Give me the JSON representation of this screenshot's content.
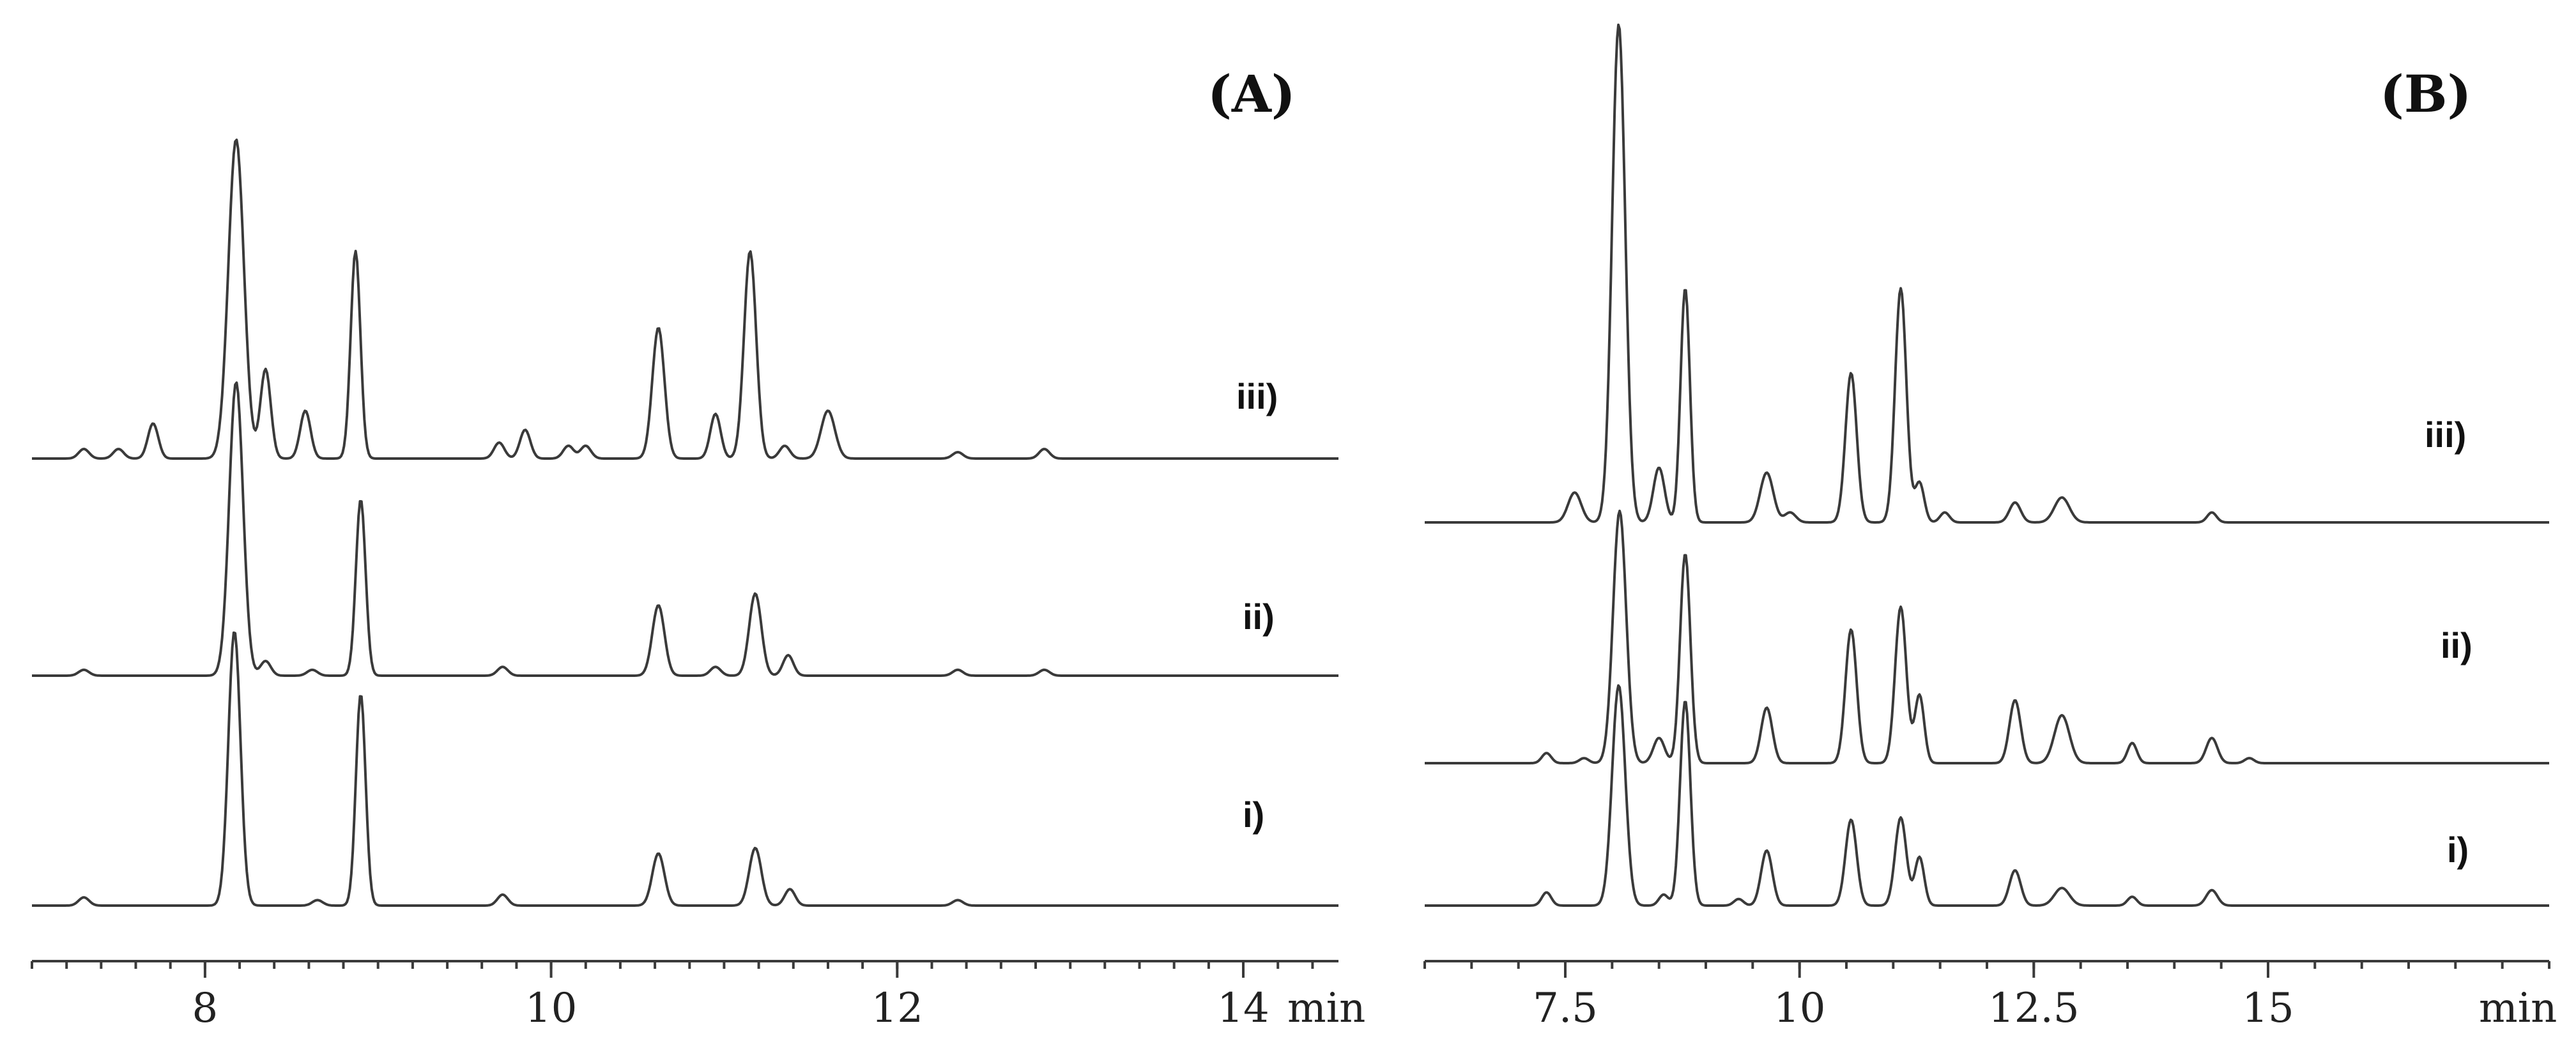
{
  "chart_data": [
    {
      "type": "line",
      "panel_label": "(A)",
      "xunit": "min",
      "xlim": [
        7.0,
        14.55
      ],
      "xticks": [
        8,
        10,
        12,
        14
      ],
      "xtick_labels": [
        "8",
        "10",
        "12",
        "14"
      ],
      "minor_tick_step": 0.2,
      "grid": false,
      "series": [
        {
          "name": "iii)",
          "peaks": [
            [
              7.3,
              0.03,
              0.03
            ],
            [
              7.5,
              0.03,
              0.03
            ],
            [
              7.7,
              0.11,
              0.03
            ],
            [
              8.18,
              1.0,
              0.045
            ],
            [
              8.35,
              0.28,
              0.03
            ],
            [
              8.58,
              0.15,
              0.03
            ],
            [
              8.87,
              0.65,
              0.028
            ],
            [
              9.7,
              0.05,
              0.03
            ],
            [
              9.85,
              0.09,
              0.03
            ],
            [
              10.1,
              0.04,
              0.03
            ],
            [
              10.2,
              0.04,
              0.03
            ],
            [
              10.62,
              0.41,
              0.035
            ],
            [
              10.95,
              0.14,
              0.03
            ],
            [
              11.15,
              0.65,
              0.035
            ],
            [
              11.35,
              0.04,
              0.03
            ],
            [
              11.6,
              0.15,
              0.04
            ],
            [
              12.35,
              0.02,
              0.03
            ],
            [
              12.85,
              0.03,
              0.03
            ]
          ]
        },
        {
          "name": "ii)",
          "peaks": [
            [
              7.3,
              0.02,
              0.03
            ],
            [
              8.18,
              1.0,
              0.04
            ],
            [
              8.35,
              0.05,
              0.03
            ],
            [
              8.62,
              0.02,
              0.03
            ],
            [
              8.9,
              0.6,
              0.028
            ],
            [
              9.72,
              0.03,
              0.03
            ],
            [
              10.62,
              0.24,
              0.035
            ],
            [
              10.95,
              0.03,
              0.03
            ],
            [
              11.18,
              0.28,
              0.035
            ],
            [
              11.37,
              0.07,
              0.03
            ],
            [
              12.35,
              0.02,
              0.03
            ],
            [
              12.85,
              0.02,
              0.03
            ]
          ]
        },
        {
          "name": "i)",
          "peaks": [
            [
              7.3,
              0.03,
              0.03
            ],
            [
              8.17,
              1.0,
              0.035
            ],
            [
              8.65,
              0.02,
              0.03
            ],
            [
              8.9,
              0.77,
              0.028
            ],
            [
              9.72,
              0.04,
              0.03
            ],
            [
              10.62,
              0.19,
              0.035
            ],
            [
              11.18,
              0.21,
              0.035
            ],
            [
              11.38,
              0.06,
              0.03
            ],
            [
              12.35,
              0.02,
              0.03
            ]
          ]
        }
      ]
    },
    {
      "type": "line",
      "panel_label": "(B)",
      "xunit": "min",
      "xlim": [
        6.0,
        18.0
      ],
      "xticks": [
        7.5,
        10,
        12.5,
        15
      ],
      "xtick_labels": [
        "7.5",
        "10",
        "12.5",
        "15"
      ],
      "minor_tick_step": 0.5,
      "grid": false,
      "series": [
        {
          "name": "iii)",
          "peaks": [
            [
              7.6,
              0.06,
              0.07
            ],
            [
              8.07,
              1.0,
              0.07
            ],
            [
              8.5,
              0.11,
              0.06
            ],
            [
              8.78,
              0.47,
              0.05
            ],
            [
              9.65,
              0.1,
              0.07
            ],
            [
              9.9,
              0.02,
              0.06
            ],
            [
              10.55,
              0.3,
              0.06
            ],
            [
              11.08,
              0.47,
              0.06
            ],
            [
              11.28,
              0.08,
              0.05
            ],
            [
              11.55,
              0.02,
              0.05
            ],
            [
              12.3,
              0.04,
              0.06
            ],
            [
              12.8,
              0.05,
              0.08
            ],
            [
              14.4,
              0.02,
              0.05
            ]
          ]
        },
        {
          "name": "ii)",
          "peaks": [
            [
              7.3,
              0.04,
              0.05
            ],
            [
              7.7,
              0.02,
              0.05
            ],
            [
              8.08,
              1.0,
              0.07
            ],
            [
              8.5,
              0.1,
              0.06
            ],
            [
              8.78,
              0.83,
              0.055
            ],
            [
              9.65,
              0.22,
              0.06
            ],
            [
              10.55,
              0.53,
              0.06
            ],
            [
              11.08,
              0.62,
              0.06
            ],
            [
              11.28,
              0.27,
              0.05
            ],
            [
              12.3,
              0.25,
              0.06
            ],
            [
              12.8,
              0.19,
              0.08
            ],
            [
              13.55,
              0.08,
              0.05
            ],
            [
              14.4,
              0.1,
              0.06
            ],
            [
              14.8,
              0.02,
              0.05
            ]
          ]
        },
        {
          "name": "i)",
          "peaks": [
            [
              7.3,
              0.06,
              0.05
            ],
            [
              8.07,
              1.0,
              0.07
            ],
            [
              8.55,
              0.05,
              0.05
            ],
            [
              8.78,
              0.93,
              0.055
            ],
            [
              9.35,
              0.03,
              0.05
            ],
            [
              9.65,
              0.25,
              0.06
            ],
            [
              10.55,
              0.39,
              0.06
            ],
            [
              11.08,
              0.4,
              0.06
            ],
            [
              11.28,
              0.22,
              0.05
            ],
            [
              12.3,
              0.16,
              0.06
            ],
            [
              12.8,
              0.08,
              0.08
            ],
            [
              13.55,
              0.04,
              0.05
            ],
            [
              14.4,
              0.07,
              0.06
            ]
          ]
        }
      ]
    }
  ]
}
